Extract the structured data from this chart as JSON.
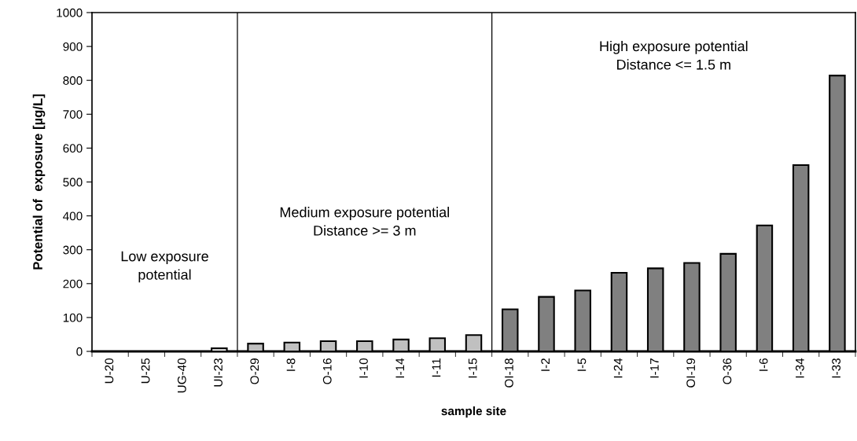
{
  "chart_data": {
    "type": "bar",
    "xlabel": "sample site",
    "ylabel": "Potential of  exposure [µg/L]",
    "categories": [
      "U-20",
      "U-25",
      "UG-40",
      "UI-23",
      "O-29",
      "I-8",
      "O-16",
      "I-10",
      "I-14",
      "I-11",
      "I-15",
      "OI-18",
      "I-2",
      "I-5",
      "I-24",
      "I-17",
      "OI-19",
      "O-36",
      "I-6",
      "I-34",
      "I-33"
    ],
    "values": [
      0,
      0,
      0,
      9,
      23,
      26,
      30,
      30,
      35,
      39,
      48,
      124,
      161,
      180,
      232,
      245,
      261,
      288,
      372,
      550,
      814
    ],
    "colors": [
      "#ffffff",
      "#ffffff",
      "#ffffff",
      "#ffffff",
      "#c0c0c0",
      "#c0c0c0",
      "#c0c0c0",
      "#c0c0c0",
      "#c0c0c0",
      "#c0c0c0",
      "#c0c0c0",
      "#808080",
      "#808080",
      "#808080",
      "#808080",
      "#808080",
      "#808080",
      "#808080",
      "#808080",
      "#808080",
      "#808080"
    ],
    "ylim": [
      0,
      1000
    ],
    "yticks": [
      0,
      100,
      200,
      300,
      400,
      500,
      600,
      700,
      800,
      900,
      1000
    ],
    "grid": false,
    "legend": false,
    "annotations": [
      "Low exposure\npotential",
      "Medium exposure potential\nDistance >= 3 m",
      "High exposure potential\nDistance <= 1.5 m"
    ]
  }
}
